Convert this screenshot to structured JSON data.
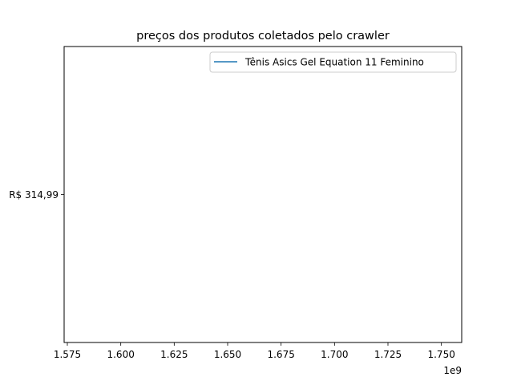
{
  "chart_data": {
    "type": "line",
    "title": "preços dos produtos coletados pelo crawler",
    "xlabel": "",
    "ylabel": "",
    "x_offset_label": "1e9",
    "xlim": [
      1.5735,
      1.7595
    ],
    "x_ticks": [
      1.575,
      1.6,
      1.625,
      1.65,
      1.675,
      1.7,
      1.725,
      1.75
    ],
    "x_tick_labels": [
      "1.575",
      "1.600",
      "1.625",
      "1.650",
      "1.675",
      "1.700",
      "1.725",
      "1.750"
    ],
    "y_categories": [
      "R$ 314,99"
    ],
    "legend_position": "upper-right",
    "grid": false,
    "series": [
      {
        "name": "Tênis Asics Gel Equation 11 Feminino",
        "color": "#1f77b4",
        "x": [],
        "y": []
      }
    ]
  }
}
